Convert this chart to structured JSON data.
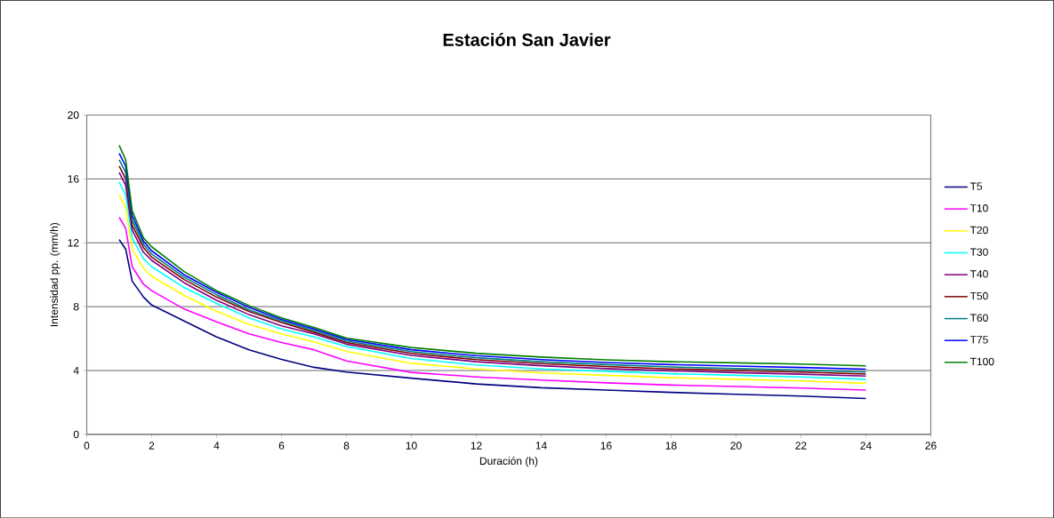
{
  "chart_data": {
    "type": "line",
    "title": "Estación San Javier",
    "xlabel": "Duración (h)",
    "ylabel": "Intensidad pp. (mm/h)",
    "x": [
      1,
      1.2,
      1.4,
      1.75,
      2,
      3,
      4,
      5,
      6,
      7,
      8,
      10,
      12,
      14,
      16,
      18,
      20,
      22,
      24
    ],
    "series": [
      {
        "name": "T5",
        "color": "#000080",
        "values": [
          12.2,
          11.6,
          9.6,
          8.6,
          8.1,
          7.1,
          6.1,
          5.3,
          4.7,
          4.2,
          3.9,
          3.52,
          3.16,
          2.92,
          2.78,
          2.63,
          2.51,
          2.4,
          2.25
        ]
      },
      {
        "name": "T10",
        "color": "#ff00ff",
        "values": [
          13.6,
          12.9,
          10.5,
          9.4,
          9.0,
          7.85,
          7.05,
          6.3,
          5.75,
          5.3,
          4.6,
          3.88,
          3.6,
          3.4,
          3.23,
          3.09,
          3.0,
          2.9,
          2.78
        ]
      },
      {
        "name": "T20",
        "color": "#ffff00",
        "values": [
          15.0,
          14.2,
          11.6,
          10.4,
          9.9,
          8.7,
          7.7,
          6.9,
          6.3,
          5.8,
          5.2,
          4.45,
          4.1,
          3.85,
          3.7,
          3.55,
          3.45,
          3.35,
          3.2
        ]
      },
      {
        "name": "T30",
        "color": "#00ffff",
        "values": [
          15.8,
          15.0,
          12.3,
          11.0,
          10.5,
          9.2,
          8.2,
          7.3,
          6.6,
          6.1,
          5.5,
          4.75,
          4.35,
          4.1,
          3.95,
          3.8,
          3.7,
          3.6,
          3.45
        ]
      },
      {
        "name": "T40",
        "color": "#800080",
        "values": [
          16.4,
          15.6,
          12.8,
          11.4,
          10.9,
          9.5,
          8.4,
          7.5,
          6.8,
          6.3,
          5.65,
          4.95,
          4.55,
          4.3,
          4.12,
          3.98,
          3.87,
          3.77,
          3.65
        ]
      },
      {
        "name": "T50",
        "color": "#800000",
        "values": [
          16.8,
          16.0,
          13.1,
          11.7,
          11.1,
          9.7,
          8.6,
          7.7,
          7.0,
          6.4,
          5.75,
          5.07,
          4.68,
          4.43,
          4.25,
          4.1,
          4.0,
          3.9,
          3.78
        ]
      },
      {
        "name": "T60",
        "color": "#008080",
        "values": [
          17.2,
          16.4,
          13.4,
          11.9,
          11.3,
          9.85,
          8.75,
          7.8,
          7.1,
          6.5,
          5.85,
          5.18,
          4.8,
          4.55,
          4.37,
          4.22,
          4.12,
          4.02,
          3.9
        ]
      },
      {
        "name": "T75",
        "color": "#0000ff",
        "values": [
          17.6,
          16.8,
          13.7,
          12.1,
          11.5,
          10.0,
          8.9,
          7.95,
          7.2,
          6.6,
          5.95,
          5.3,
          4.93,
          4.68,
          4.5,
          4.37,
          4.28,
          4.19,
          4.08
        ]
      },
      {
        "name": "T100",
        "color": "#008000",
        "values": [
          18.1,
          17.2,
          14.0,
          12.3,
          11.75,
          10.2,
          9.0,
          8.07,
          7.3,
          6.7,
          6.03,
          5.44,
          5.08,
          4.84,
          4.67,
          4.55,
          4.48,
          4.4,
          4.29
        ]
      }
    ],
    "xlim": [
      0,
      26
    ],
    "xticks": [
      0,
      2,
      4,
      6,
      8,
      10,
      12,
      14,
      16,
      18,
      20,
      22,
      24,
      26
    ],
    "ylim": [
      0,
      20
    ],
    "yticks": [
      0,
      4,
      8,
      12,
      16,
      20
    ],
    "grid": "y",
    "legend": "right",
    "marker": "none",
    "line_style": "solid"
  }
}
